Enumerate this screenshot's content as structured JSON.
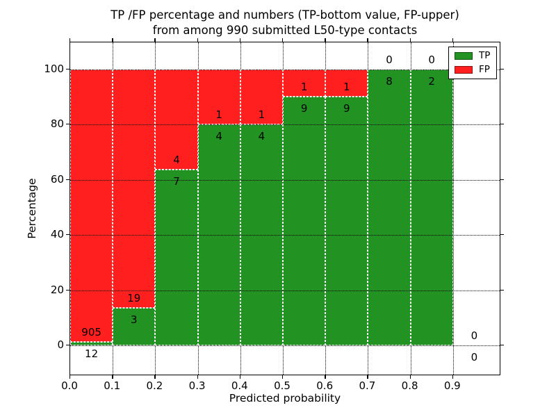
{
  "figure": {
    "title_line1": "TP /FP percentage and numbers (TP-bottom value, FP-upper)",
    "title_line2": "from among 990 submitted L50-type contacts",
    "xlabel": "Predicted probability",
    "ylabel": "Percentage"
  },
  "legend": {
    "items": [
      {
        "label": "TP",
        "color": "#229322"
      },
      {
        "label": "FP",
        "color": "#ff1f1f"
      }
    ]
  },
  "chart_data": {
    "type": "bar",
    "stacked": true,
    "title": "TP /FP percentage and numbers (TP-bottom value, FP-upper) from among 990 submitted L50-type contacts",
    "xlabel": "Predicted probability",
    "ylabel": "Percentage",
    "x_tick_labels": [
      "0.0",
      "0.1",
      "0.2",
      "0.3",
      "0.4",
      "0.5",
      "0.6",
      "0.7",
      "0.8",
      "0.9"
    ],
    "x_tick_values": [
      0.0,
      0.1,
      0.2,
      0.3,
      0.4,
      0.5,
      0.6,
      0.7,
      0.8,
      0.9
    ],
    "y_tick_values": [
      0,
      20,
      40,
      60,
      80,
      100
    ],
    "xlim": [
      0.0,
      1.013
    ],
    "ylim": [
      -11,
      110
    ],
    "grid": "dotted",
    "legend_position": "upper right",
    "total_contacts": 990,
    "series": [
      {
        "name": "TP",
        "color": "#229322",
        "values": [
          1.31,
          13.64,
          63.64,
          80.0,
          80.0,
          90.0,
          90.0,
          100.0,
          100.0,
          null
        ]
      },
      {
        "name": "FP",
        "color": "#ff1f1f",
        "values": [
          98.69,
          86.36,
          36.36,
          20.0,
          20.0,
          10.0,
          10.0,
          0.0,
          0.0,
          null
        ]
      }
    ],
    "bins": [
      {
        "x0": 0.0,
        "x1": 0.1,
        "tp": 12,
        "fp": 905,
        "tp_pct": 1.31,
        "fp_pct": 98.69
      },
      {
        "x0": 0.1,
        "x1": 0.2,
        "tp": 3,
        "fp": 19,
        "tp_pct": 13.64,
        "fp_pct": 86.36
      },
      {
        "x0": 0.2,
        "x1": 0.3,
        "tp": 7,
        "fp": 4,
        "tp_pct": 63.64,
        "fp_pct": 36.36
      },
      {
        "x0": 0.3,
        "x1": 0.4,
        "tp": 4,
        "fp": 1,
        "tp_pct": 80.0,
        "fp_pct": 20.0
      },
      {
        "x0": 0.4,
        "x1": 0.5,
        "tp": 4,
        "fp": 1,
        "tp_pct": 80.0,
        "fp_pct": 20.0
      },
      {
        "x0": 0.5,
        "x1": 0.6,
        "tp": 9,
        "fp": 1,
        "tp_pct": 90.0,
        "fp_pct": 10.0
      },
      {
        "x0": 0.6,
        "x1": 0.7,
        "tp": 9,
        "fp": 1,
        "tp_pct": 90.0,
        "fp_pct": 10.0
      },
      {
        "x0": 0.7,
        "x1": 0.8,
        "tp": 8,
        "fp": 0,
        "tp_pct": 100.0,
        "fp_pct": 0.0
      },
      {
        "x0": 0.8,
        "x1": 0.9,
        "tp": 2,
        "fp": 0,
        "tp_pct": 100.0,
        "fp_pct": 0.0
      },
      {
        "x0": 0.9,
        "x1": 1.0,
        "tp": 0,
        "fp": 0,
        "tp_pct": null,
        "fp_pct": null
      }
    ]
  }
}
